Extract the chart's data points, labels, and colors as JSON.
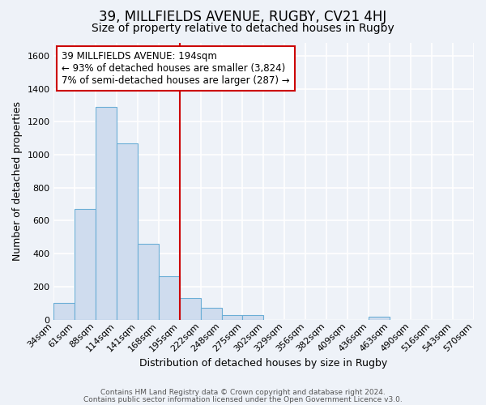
{
  "title": "39, MILLFIELDS AVENUE, RUGBY, CV21 4HJ",
  "subtitle": "Size of property relative to detached houses in Rugby",
  "xlabel": "Distribution of detached houses by size in Rugby",
  "ylabel": "Number of detached properties",
  "footer_line1": "Contains HM Land Registry data © Crown copyright and database right 2024.",
  "footer_line2": "Contains public sector information licensed under the Open Government Licence v3.0.",
  "bin_labels": [
    "34sqm",
    "61sqm",
    "88sqm",
    "114sqm",
    "141sqm",
    "168sqm",
    "195sqm",
    "222sqm",
    "248sqm",
    "275sqm",
    "302sqm",
    "329sqm",
    "356sqm",
    "382sqm",
    "409sqm",
    "436sqm",
    "463sqm",
    "490sqm",
    "516sqm",
    "543sqm",
    "570sqm"
  ],
  "bar_values": [
    100,
    670,
    1290,
    1070,
    460,
    265,
    130,
    70,
    30,
    30,
    0,
    0,
    0,
    0,
    0,
    20,
    0,
    0,
    0,
    0
  ],
  "bar_color": "#cfdcee",
  "bar_edge_color": "#6baed6",
  "vline_x_index": 6,
  "vline_color": "#cc0000",
  "annotation_text_line1": "39 MILLFIELDS AVENUE: 194sqm",
  "annotation_text_line2": "← 93% of detached houses are smaller (3,824)",
  "annotation_text_line3": "7% of semi-detached houses are larger (287) →",
  "annotation_box_edge_color": "#cc0000",
  "annotation_box_face_color": "white",
  "ylim": [
    0,
    1680
  ],
  "yticks": [
    0,
    200,
    400,
    600,
    800,
    1000,
    1200,
    1400,
    1600
  ],
  "bg_color": "#eef2f8",
  "grid_color": "#ffffff",
  "title_fontsize": 12,
  "subtitle_fontsize": 10,
  "axis_label_fontsize": 9,
  "tick_fontsize": 8
}
